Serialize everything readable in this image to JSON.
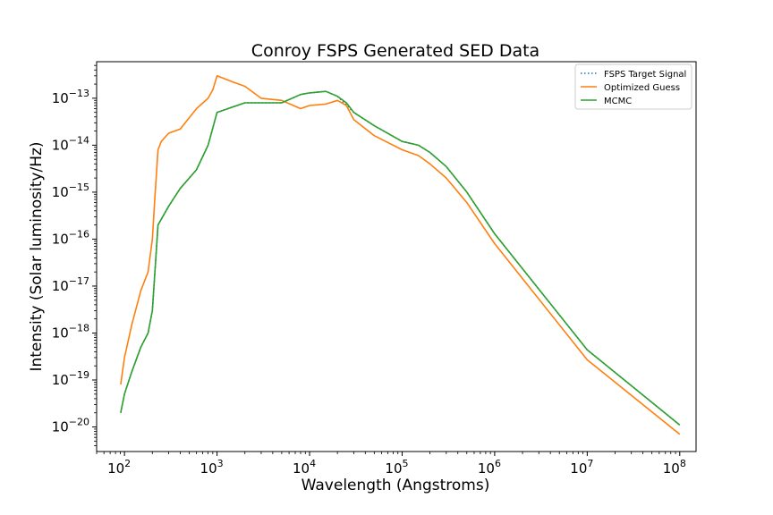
{
  "chart_data": {
    "type": "line",
    "title": "Conroy FSPS Generated SED Data",
    "xlabel": "Wavelength (Angstroms)",
    "ylabel": "Intensity (Solar luminosity/Hz)",
    "xscale": "log",
    "yscale": "log",
    "xlim": [
      50,
      150000000
    ],
    "ylim": [
      3e-21,
      6e-13
    ],
    "grid": false,
    "legend_position": "top-right",
    "x_ticks": [
      {
        "mant": "10",
        "exp": "2",
        "value": 100
      },
      {
        "mant": "10",
        "exp": "3",
        "value": 1000
      },
      {
        "mant": "10",
        "exp": "4",
        "value": 10000
      },
      {
        "mant": "10",
        "exp": "5",
        "value": 100000
      },
      {
        "mant": "10",
        "exp": "6",
        "value": 1000000
      },
      {
        "mant": "10",
        "exp": "7",
        "value": 10000000
      },
      {
        "mant": "10",
        "exp": "8",
        "value": 100000000
      }
    ],
    "y_ticks": [
      {
        "mant": "10",
        "exp": "−20",
        "value": 1e-20
      },
      {
        "mant": "10",
        "exp": "−19",
        "value": 1e-19
      },
      {
        "mant": "10",
        "exp": "−18",
        "value": 1e-18
      },
      {
        "mant": "10",
        "exp": "−17",
        "value": 1e-17
      },
      {
        "mant": "10",
        "exp": "−16",
        "value": 1e-16
      },
      {
        "mant": "10",
        "exp": "−15",
        "value": 1e-15
      },
      {
        "mant": "10",
        "exp": "−14",
        "value": 1e-14
      },
      {
        "mant": "10",
        "exp": "−13",
        "value": 1e-13
      }
    ],
    "series": [
      {
        "name": "FSPS Target Signal",
        "color": "#1f77b4",
        "style": "dotted",
        "x": [
          91,
          100,
          120,
          150,
          180,
          200,
          230,
          300,
          400,
          600,
          800,
          1000,
          2000,
          3000,
          5000,
          8000,
          10000,
          15000,
          20000,
          30000,
          50000,
          100000,
          150000,
          200000,
          300000,
          500000,
          1000000,
          10000000,
          100000000
        ],
        "y": [
          2e-20,
          5e-20,
          1.5e-19,
          5e-19,
          1e-18,
          3e-18,
          2e-16,
          5e-16,
          1.2e-15,
          3e-15,
          1e-14,
          5e-14,
          8e-14,
          8e-14,
          8e-14,
          1.2e-13,
          1.3e-13,
          1.4e-13,
          1.1e-13,
          5e-14,
          2.6e-14,
          1.2e-14,
          1e-14,
          7e-15,
          3.5e-15,
          1e-15,
          1.3e-16,
          4.4e-19,
          1.1e-20
        ]
      },
      {
        "name": "Optimized Guess",
        "color": "#ff7f0e",
        "style": "solid",
        "x": [
          91,
          100,
          120,
          150,
          180,
          200,
          210,
          230,
          250,
          300,
          400,
          600,
          800,
          900,
          1000,
          1500,
          2000,
          3000,
          5000,
          8000,
          10000,
          15000,
          20000,
          25000,
          30000,
          50000,
          100000,
          150000,
          200000,
          300000,
          500000,
          1000000,
          10000000,
          100000000
        ],
        "y": [
          8e-20,
          3e-19,
          1.5e-18,
          8e-18,
          2e-17,
          1e-16,
          5e-16,
          8e-15,
          1.2e-14,
          1.8e-14,
          2.2e-14,
          6e-14,
          1e-13,
          1.5e-13,
          3e-13,
          2.2e-13,
          1.8e-13,
          1e-13,
          9e-14,
          6e-14,
          7e-14,
          7.5e-14,
          9e-14,
          7e-14,
          3.5e-14,
          1.6e-14,
          8e-15,
          6e-15,
          4e-15,
          2e-15,
          6e-16,
          8e-17,
          2.7e-19,
          7e-21
        ]
      },
      {
        "name": "MCMC",
        "color": "#2ca02c",
        "style": "solid",
        "x": [
          91,
          100,
          120,
          150,
          180,
          200,
          230,
          300,
          400,
          600,
          800,
          1000,
          2000,
          3000,
          5000,
          8000,
          10000,
          15000,
          20000,
          25000,
          30000,
          50000,
          100000,
          150000,
          200000,
          300000,
          500000,
          1000000,
          10000000,
          100000000
        ],
        "y": [
          2e-20,
          5e-20,
          1.5e-19,
          5e-19,
          1e-18,
          3e-18,
          2e-16,
          5e-16,
          1.2e-15,
          3e-15,
          1e-14,
          5e-14,
          8e-14,
          8e-14,
          8e-14,
          1.2e-13,
          1.3e-13,
          1.4e-13,
          1.1e-13,
          8e-14,
          5e-14,
          2.6e-14,
          1.2e-14,
          1e-14,
          7e-15,
          3.5e-15,
          1e-15,
          1.3e-16,
          4.4e-19,
          1.1e-20
        ]
      }
    ]
  }
}
